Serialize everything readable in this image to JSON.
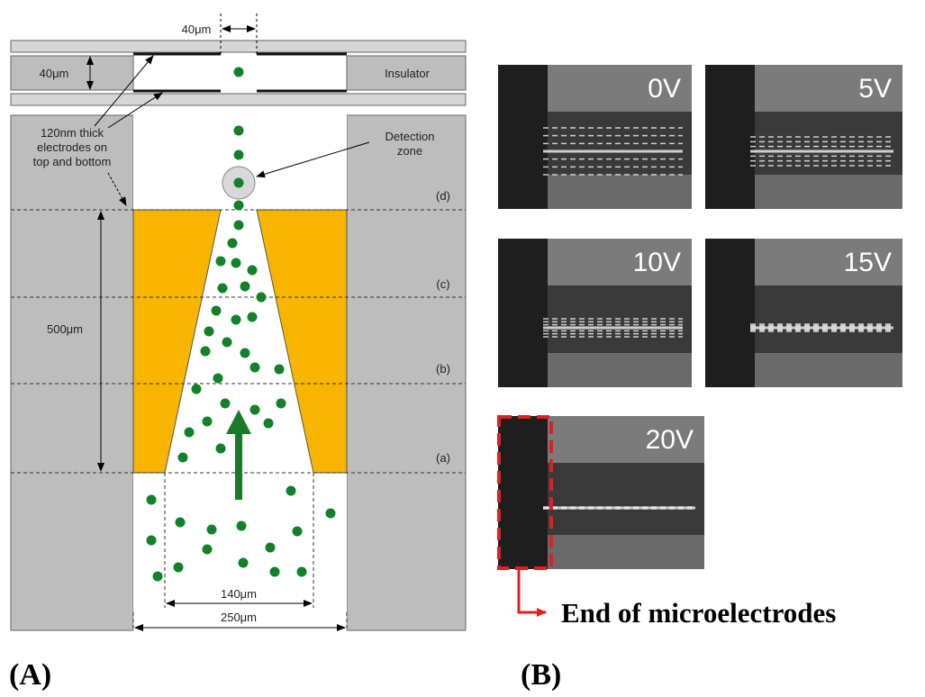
{
  "panel_a": {
    "label": "(A)",
    "gap_width": "40μm",
    "channel_height": "40μm",
    "insulator": "Insulator",
    "electrodes_note": [
      "120nm thick",
      "electrodes on",
      "top and bottom"
    ],
    "detection_zone": [
      "Detection",
      "zone"
    ],
    "sections": [
      "(d)",
      "(c)",
      "(b)",
      "(a)"
    ],
    "electrode_length": "500μm",
    "outlet_width": "140μm",
    "channel_width": "250μm"
  },
  "panel_b": {
    "label": "(B)",
    "voltages": [
      "0V",
      "5V",
      "10V",
      "15V",
      "20V"
    ],
    "annotation": "End of microelectrodes"
  }
}
